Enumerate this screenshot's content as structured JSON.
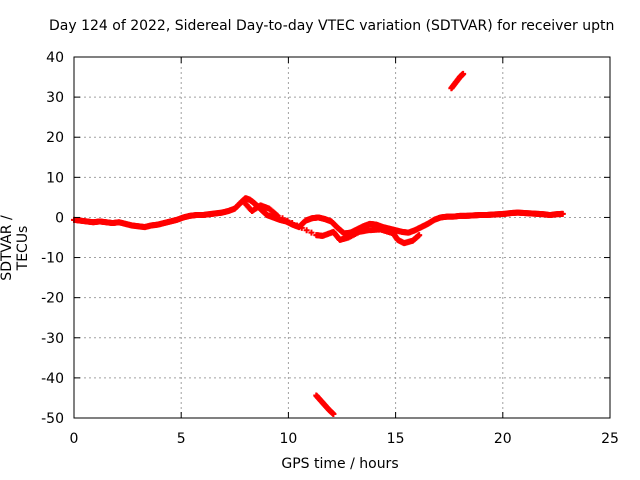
{
  "chart_data": {
    "type": "scatter",
    "title": "Day 124 of 2022, Sidereal Day-to-day VTEC variation (SDTVAR) for receiver uptn",
    "xlabel": "GPS time / hours",
    "ylabel": "SDTVAR / TECUs",
    "xlim": [
      0,
      25
    ],
    "ylim": [
      -50,
      40
    ],
    "xticks": [
      0,
      5,
      10,
      15,
      20,
      25
    ],
    "yticks": [
      -50,
      -40,
      -30,
      -20,
      -10,
      0,
      10,
      20,
      30,
      40
    ],
    "grid": true,
    "marker_color": "#ff0000",
    "series": [
      {
        "name": "main trace",
        "points": [
          [
            0.0,
            -0.6
          ],
          [
            0.3,
            -0.8
          ],
          [
            0.6,
            -1.0
          ],
          [
            0.9,
            -1.2
          ],
          [
            1.2,
            -1.0
          ],
          [
            1.5,
            -1.2
          ],
          [
            1.8,
            -1.4
          ],
          [
            2.1,
            -1.2
          ],
          [
            2.4,
            -1.6
          ],
          [
            2.7,
            -2.0
          ],
          [
            3.0,
            -2.2
          ],
          [
            3.3,
            -2.4
          ],
          [
            3.6,
            -2.0
          ],
          [
            3.9,
            -1.8
          ],
          [
            4.2,
            -1.4
          ],
          [
            4.5,
            -1.0
          ],
          [
            4.8,
            -0.6
          ],
          [
            5.1,
            0.0
          ],
          [
            5.4,
            0.4
          ],
          [
            5.7,
            0.6
          ],
          [
            6.0,
            0.6
          ],
          [
            6.3,
            0.8
          ],
          [
            6.6,
            1.0
          ],
          [
            6.9,
            1.2
          ],
          [
            7.2,
            1.6
          ],
          [
            7.5,
            2.2
          ],
          [
            7.8,
            3.8
          ],
          [
            8.0,
            4.8
          ],
          [
            8.2,
            4.4
          ],
          [
            8.4,
            3.6
          ],
          [
            8.6,
            2.6
          ],
          [
            8.8,
            1.6
          ],
          [
            9.0,
            0.6
          ],
          [
            9.3,
            0.0
          ],
          [
            9.6,
            -0.6
          ],
          [
            9.9,
            -1.0
          ],
          [
            10.2,
            -1.8
          ],
          [
            10.5,
            -2.4
          ],
          [
            10.8,
            -0.8
          ],
          [
            11.1,
            -0.2
          ],
          [
            11.4,
            0.0
          ],
          [
            11.7,
            -0.4
          ],
          [
            12.0,
            -1.0
          ],
          [
            12.3,
            -2.6
          ],
          [
            12.6,
            -4.0
          ],
          [
            12.9,
            -3.8
          ],
          [
            13.2,
            -3.0
          ],
          [
            13.5,
            -2.2
          ],
          [
            13.8,
            -1.6
          ],
          [
            14.1,
            -1.8
          ],
          [
            14.4,
            -2.4
          ],
          [
            14.7,
            -2.8
          ],
          [
            15.0,
            -3.2
          ],
          [
            15.3,
            -3.6
          ],
          [
            15.6,
            -3.8
          ],
          [
            15.9,
            -3.2
          ],
          [
            16.2,
            -2.4
          ],
          [
            16.5,
            -1.6
          ],
          [
            16.8,
            -0.6
          ],
          [
            17.1,
            0.0
          ],
          [
            17.4,
            0.2
          ],
          [
            17.7,
            0.2
          ],
          [
            18.0,
            0.4
          ],
          [
            18.3,
            0.4
          ],
          [
            18.6,
            0.5
          ],
          [
            18.9,
            0.6
          ],
          [
            19.2,
            0.6
          ],
          [
            19.5,
            0.7
          ],
          [
            19.8,
            0.8
          ],
          [
            20.1,
            0.9
          ],
          [
            20.4,
            1.1
          ],
          [
            20.7,
            1.2
          ],
          [
            21.0,
            1.1
          ],
          [
            21.3,
            1.0
          ],
          [
            21.6,
            0.9
          ],
          [
            21.9,
            0.8
          ],
          [
            22.2,
            0.6
          ],
          [
            22.5,
            0.8
          ],
          [
            22.8,
            0.9
          ]
        ]
      },
      {
        "name": "secondary trace",
        "points": [
          [
            7.9,
            4.0
          ],
          [
            8.3,
            1.6
          ],
          [
            8.7,
            3.0
          ],
          [
            9.1,
            2.2
          ],
          [
            9.5,
            0.4
          ],
          [
            11.3,
            -4.4
          ],
          [
            11.6,
            -4.6
          ],
          [
            12.1,
            -3.6
          ],
          [
            12.4,
            -5.6
          ],
          [
            12.8,
            -5.0
          ],
          [
            13.3,
            -3.6
          ],
          [
            13.7,
            -3.2
          ],
          [
            14.3,
            -3.0
          ],
          [
            14.9,
            -4.0
          ],
          [
            15.1,
            -5.6
          ],
          [
            15.4,
            -6.4
          ],
          [
            15.8,
            -5.8
          ],
          [
            16.1,
            -4.4
          ]
        ]
      },
      {
        "name": "upper outlier segment",
        "points": [
          [
            17.6,
            32.2
          ],
          [
            17.8,
            33.6
          ],
          [
            18.0,
            35.0
          ],
          [
            18.15,
            35.8
          ]
        ]
      },
      {
        "name": "lower outlier segment",
        "points": [
          [
            11.3,
            -44.4
          ],
          [
            11.5,
            -45.6
          ],
          [
            11.7,
            -46.8
          ],
          [
            11.9,
            -48.0
          ],
          [
            12.1,
            -49.0
          ]
        ]
      }
    ]
  }
}
